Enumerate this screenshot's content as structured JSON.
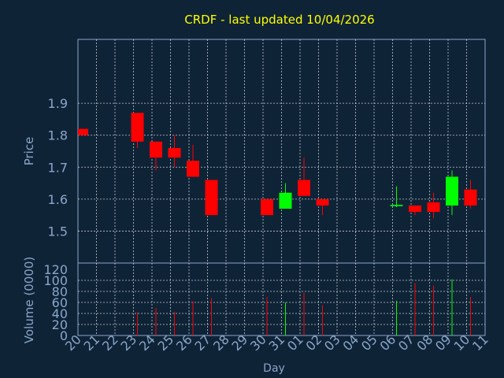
{
  "chart_data": {
    "type": "candlestick",
    "title": "CRDF - last updated 10/04/2026",
    "xlabel": "Day",
    "price_ylabel": "Price",
    "volume_ylabel": "Volume (0000)",
    "price_ylim": [
      1.4,
      2.1
    ],
    "price_ticks": [
      "1.5",
      "1.6",
      "1.7",
      "1.8",
      "1.9"
    ],
    "volume_ylim": [
      0,
      120
    ],
    "volume_ticks": [
      "0",
      "20",
      "40",
      "60",
      "80",
      "100",
      "120"
    ],
    "grid": true,
    "x_ticks": [
      "20",
      "21",
      "22",
      "23",
      "24",
      "25",
      "26",
      "27",
      "28",
      "29",
      "30",
      "31",
      "01",
      "02",
      "03",
      "04",
      "05",
      "06",
      "07",
      "08",
      "09",
      "10",
      "11"
    ],
    "up_color": "#00ff00",
    "down_color": "#ff0000",
    "candles": [
      {
        "day": "20",
        "open": 1.82,
        "high": 1.82,
        "low": 1.8,
        "close": 1.8,
        "volume": 0
      },
      {
        "day": "23",
        "open": 1.87,
        "high": 1.87,
        "low": 1.76,
        "close": 1.78,
        "volume": 42
      },
      {
        "day": "24",
        "open": 1.78,
        "high": 1.78,
        "low": 1.69,
        "close": 1.73,
        "volume": 50
      },
      {
        "day": "25",
        "open": 1.76,
        "high": 1.8,
        "low": 1.7,
        "close": 1.73,
        "volume": 43
      },
      {
        "day": "26",
        "open": 1.72,
        "high": 1.77,
        "low": 1.67,
        "close": 1.67,
        "volume": 62
      },
      {
        "day": "27",
        "open": 1.66,
        "high": 1.66,
        "low": 1.55,
        "close": 1.55,
        "volume": 68
      },
      {
        "day": "30",
        "open": 1.6,
        "high": 1.6,
        "low": 1.55,
        "close": 1.55,
        "volume": 70
      },
      {
        "day": "31",
        "open": 1.57,
        "high": 1.65,
        "low": 1.57,
        "close": 1.62,
        "volume": 60
      },
      {
        "day": "01",
        "open": 1.66,
        "high": 1.73,
        "low": 1.61,
        "close": 1.61,
        "volume": 78
      },
      {
        "day": "02",
        "open": 1.6,
        "high": 1.6,
        "low": 1.55,
        "close": 1.58,
        "volume": 55
      },
      {
        "day": "06",
        "open": 1.578,
        "high": 1.64,
        "low": 1.575,
        "close": 1.582,
        "volume": 63
      },
      {
        "day": "07",
        "open": 1.58,
        "high": 1.58,
        "low": 1.55,
        "close": 1.56,
        "volume": 95
      },
      {
        "day": "08",
        "open": 1.59,
        "high": 1.62,
        "low": 1.54,
        "close": 1.56,
        "volume": 90
      },
      {
        "day": "09",
        "open": 1.58,
        "high": 1.69,
        "low": 1.55,
        "close": 1.67,
        "volume": 102
      },
      {
        "day": "10",
        "open": 1.63,
        "high": 1.66,
        "low": 1.57,
        "close": 1.58,
        "volume": 70
      }
    ]
  }
}
